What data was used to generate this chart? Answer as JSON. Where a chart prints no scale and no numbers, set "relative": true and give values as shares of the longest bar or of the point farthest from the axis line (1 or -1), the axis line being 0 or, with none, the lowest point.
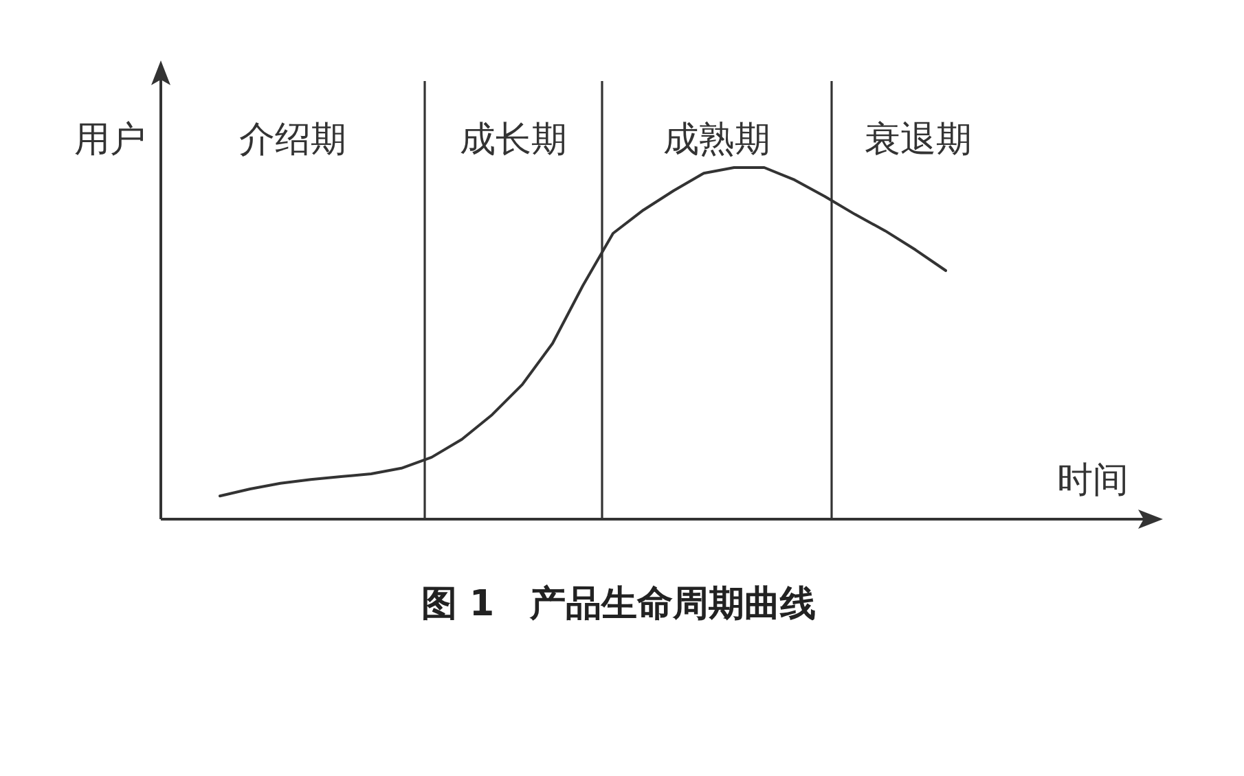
{
  "chart_data": {
    "type": "line",
    "relative": true,
    "title": "图 1　产品生命周期曲线",
    "xlabel": "时间",
    "ylabel": "用户",
    "tick_labels": false,
    "color": "#333333",
    "line_style": "solid",
    "categories": [
      null,
      null,
      null,
      null,
      null,
      null,
      null,
      null,
      null,
      null,
      null,
      null,
      null,
      null,
      null,
      null,
      null,
      null,
      null,
      null,
      null,
      null,
      null,
      null,
      null
    ],
    "values": [
      0.066,
      0.086,
      0.102,
      0.113,
      0.121,
      0.129,
      0.145,
      0.176,
      0.227,
      0.297,
      0.383,
      0.5,
      0.664,
      0.813,
      0.879,
      0.934,
      0.984,
      1.0,
      1.0,
      0.965,
      0.918,
      0.867,
      0.82,
      0.766,
      0.707
    ],
    "annotations": [
      "介绍期",
      "成长期",
      "成熟期",
      "衰退期"
    ]
  }
}
